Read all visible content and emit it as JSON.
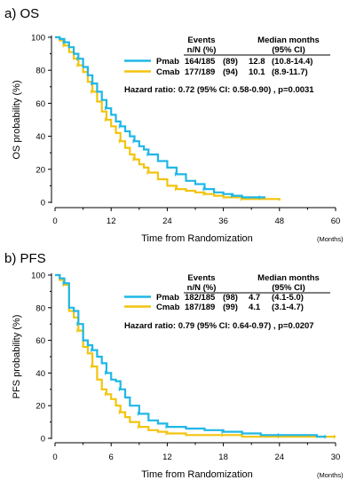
{
  "chart_data": [
    {
      "type": "line",
      "panel_title": "a) OS",
      "xlabel": "Time from Randomization",
      "x_unit": "(Months)",
      "ylabel": "OS probability (%)",
      "xlim": [
        0,
        60
      ],
      "ylim": [
        0,
        100
      ],
      "x_ticks": [
        0,
        12,
        24,
        36,
        48,
        60
      ],
      "y_ticks": [
        0,
        20,
        40,
        60,
        80,
        100
      ],
      "table": {
        "header_events": "Events",
        "header_events_sub": "n/N    (%)",
        "header_median": "Median months",
        "header_median_sub": "(95% CI)",
        "rows": [
          {
            "name": "Pmab",
            "events": "164/185",
            "pct": "(89)",
            "median": "12.8",
            "ci": "(10.8-14.4)"
          },
          {
            "name": "Cmab",
            "events": "177/189",
            "pct": "(94)",
            "median": "10.1",
            "ci": "(8.9-11.7)"
          }
        ]
      },
      "hazard_text": "Hazard ratio: 0.72   (95% CI: 0.58-0.90) , p=0.0031",
      "series": [
        {
          "name": "Pmab",
          "color": "#1fb7e6",
          "x": [
            0,
            1,
            2,
            3,
            4,
            5,
            6,
            7,
            8,
            9,
            10,
            11,
            12,
            13,
            14,
            15,
            16,
            17,
            18,
            19,
            20,
            22,
            24,
            26,
            28,
            30,
            32,
            34,
            36,
            38,
            40,
            42,
            44,
            45
          ],
          "y": [
            100,
            99,
            97,
            94,
            90,
            87,
            82,
            77,
            72,
            67,
            62,
            57,
            53,
            49,
            46,
            43,
            40,
            37,
            34,
            32,
            29,
            25,
            21,
            17,
            13,
            11,
            8,
            6,
            5,
            4,
            3,
            3,
            3,
            3
          ]
        },
        {
          "name": "Cmab",
          "color": "#f2c40f",
          "x": [
            0,
            1,
            2,
            3,
            4,
            5,
            6,
            7,
            8,
            9,
            10,
            11,
            12,
            13,
            14,
            15,
            16,
            17,
            18,
            19,
            20,
            22,
            24,
            26,
            28,
            30,
            32,
            34,
            36,
            40,
            44,
            48
          ],
          "y": [
            100,
            98,
            95,
            91,
            87,
            83,
            79,
            73,
            67,
            61,
            55,
            50,
            46,
            42,
            37,
            33,
            29,
            26,
            23,
            21,
            18,
            14,
            10,
            8,
            7,
            6,
            5,
            4,
            3,
            2,
            2,
            1
          ]
        }
      ]
    },
    {
      "type": "line",
      "panel_title": "b) PFS",
      "xlabel": "Time from Randomization",
      "x_unit": "(Months)",
      "ylabel": "PFS probability (%)",
      "xlim": [
        0,
        30
      ],
      "ylim": [
        0,
        100
      ],
      "x_ticks": [
        0,
        6,
        12,
        18,
        24,
        30
      ],
      "y_ticks": [
        0,
        20,
        40,
        60,
        80,
        100
      ],
      "table": {
        "header_events": "Events",
        "header_events_sub": "n/N    (%)",
        "header_median": "Median months",
        "header_median_sub": "(95% CI)",
        "rows": [
          {
            "name": "Pmab",
            "events": "182/185",
            "pct": "(98)",
            "median": "4.7",
            "ci": "(4.1-5.0)"
          },
          {
            "name": "Cmab",
            "events": "187/189",
            "pct": "(99)",
            "median": "4.1",
            "ci": "(3.1-4.7)"
          }
        ]
      },
      "hazard_text": "Hazard ratio: 0.79   (95% CI: 0.64-0.97) , p=0.0207",
      "series": [
        {
          "name": "Pmab",
          "color": "#1fb7e6",
          "x": [
            0,
            0.5,
            1.0,
            1.5,
            2.0,
            2.5,
            3.0,
            3.5,
            4.0,
            4.5,
            5.0,
            5.5,
            6.0,
            6.5,
            7.0,
            7.5,
            8.0,
            9.0,
            10,
            11,
            12,
            14,
            16,
            18,
            20,
            22,
            24,
            26,
            28,
            29
          ],
          "y": [
            100,
            98,
            95,
            80,
            78,
            70,
            60,
            57,
            54,
            50,
            46,
            40,
            36,
            35,
            30,
            25,
            20,
            15,
            11,
            9,
            7,
            6,
            5,
            4,
            3,
            2,
            2,
            2,
            1,
            1
          ]
        },
        {
          "name": "Cmab",
          "color": "#f2c40f",
          "x": [
            0,
            0.5,
            1.0,
            1.5,
            2.0,
            2.5,
            3.0,
            3.5,
            4.0,
            4.5,
            5.0,
            5.5,
            6.0,
            6.5,
            7.0,
            7.5,
            8.0,
            9.0,
            10,
            11,
            12,
            14,
            16,
            18,
            20,
            22,
            24,
            26,
            28,
            30
          ],
          "y": [
            100,
            97,
            94,
            78,
            74,
            66,
            56,
            52,
            44,
            36,
            30,
            27,
            24,
            20,
            16,
            13,
            10,
            7,
            5,
            4,
            3,
            2,
            2,
            2,
            1,
            1,
            1,
            1,
            1,
            1
          ]
        }
      ]
    }
  ]
}
